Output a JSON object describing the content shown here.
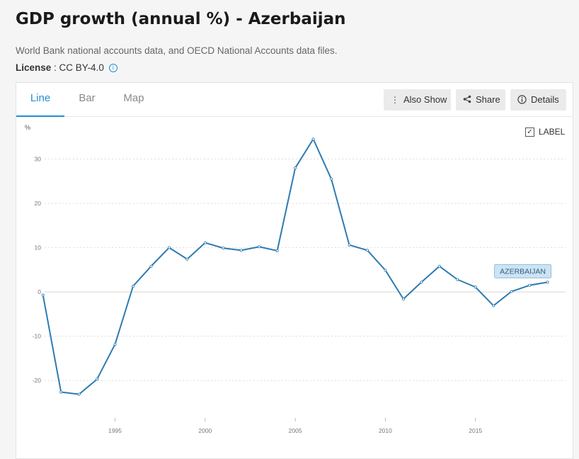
{
  "page": {
    "title": "GDP growth (annual %) - Azerbaijan",
    "source": "World Bank national accounts data, and OECD National Accounts data files.",
    "license_label": "License",
    "license_sep": " : ",
    "license_value": "CC BY-4.0",
    "info_glyph": "i"
  },
  "tabs": [
    {
      "label": "Line",
      "active": true
    },
    {
      "label": "Bar",
      "active": false
    },
    {
      "label": "Map",
      "active": false
    }
  ],
  "toolbar": {
    "also_show": "Also Show",
    "share": "Share",
    "details": "Details"
  },
  "label_toggle": {
    "text": "LABEL",
    "checked": true,
    "glyph": "✓"
  },
  "colors": {
    "accent": "#1f8fd3",
    "line": "#2e7bb0",
    "badge_bg": "#cde3f2",
    "badge_border": "#8fbfe0",
    "badge_text": "#2b5f86"
  },
  "chart_data": {
    "type": "line",
    "ylabel": "%",
    "ylim": [
      -27,
      36
    ],
    "xlim": [
      1990.5,
      2020
    ],
    "yticks": [
      30,
      20,
      10,
      0,
      -10,
      -20
    ],
    "xticks": [
      1995,
      2000,
      2005,
      2010,
      2015
    ],
    "grid": true,
    "series": [
      {
        "name": "AZERBAIJAN",
        "x": [
          1991,
          1992,
          1993,
          1994,
          1995,
          1996,
          1997,
          1998,
          1999,
          2000,
          2001,
          2002,
          2003,
          2004,
          2005,
          2006,
          2007,
          2008,
          2009,
          2010,
          2011,
          2012,
          2013,
          2014,
          2015,
          2016,
          2017,
          2018,
          2019
        ],
        "values": [
          -0.7,
          -22.6,
          -23.1,
          -19.7,
          -11.8,
          1.3,
          5.8,
          10.0,
          7.4,
          11.1,
          9.9,
          9.4,
          10.2,
          9.3,
          28.0,
          34.5,
          25.5,
          10.6,
          9.4,
          4.9,
          -1.6,
          2.2,
          5.8,
          2.8,
          1.1,
          -3.1,
          0.1,
          1.5,
          2.2
        ]
      }
    ]
  }
}
